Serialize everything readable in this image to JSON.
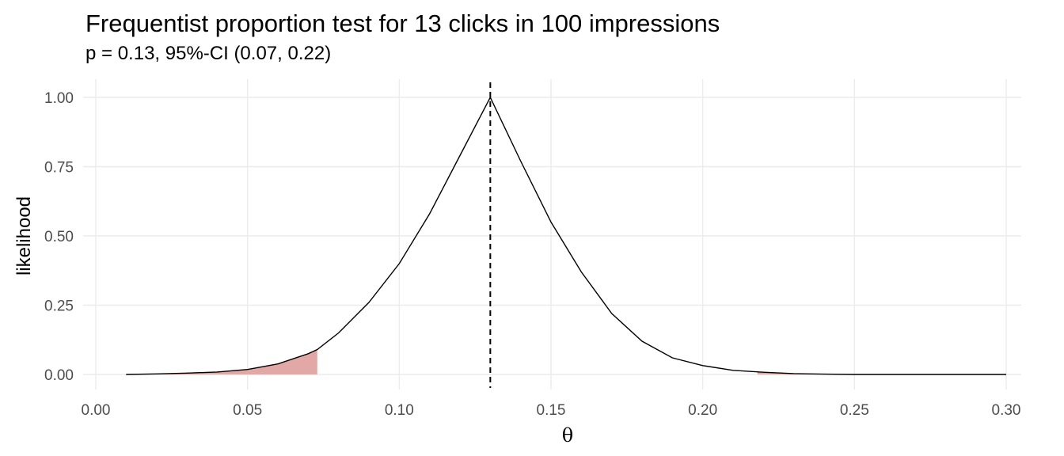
{
  "chart_data": {
    "type": "area",
    "title": "Frequentist proportion test for 13 clicks in 100 impressions",
    "subtitle": "p = 0.13, 95%-CI (0.07, 0.22)",
    "xlabel": "θ",
    "ylabel": "likelihood",
    "xlim": [
      0.0,
      0.3
    ],
    "ylim": [
      0.0,
      1.0
    ],
    "x_ticks": [
      "0.00",
      "0.05",
      "0.10",
      "0.15",
      "0.20",
      "0.25",
      "0.30"
    ],
    "y_ticks": [
      "0.00",
      "0.25",
      "0.50",
      "0.75",
      "1.00"
    ],
    "grid": true,
    "reference_line": {
      "x": 0.13,
      "style": "dashed",
      "color": "#000000"
    },
    "shaded_color": "#e2a8a6",
    "shaded_regions": [
      {
        "x_from": 0.01,
        "x_to": 0.073
      },
      {
        "x_from": 0.218,
        "x_to": 0.3
      }
    ],
    "series": [
      {
        "color": "#000000",
        "x": [
          0.01,
          0.02,
          0.03,
          0.04,
          0.05,
          0.06,
          0.07,
          0.073,
          0.08,
          0.09,
          0.1,
          0.11,
          0.12,
          0.13,
          0.14,
          0.15,
          0.16,
          0.17,
          0.18,
          0.19,
          0.2,
          0.21,
          0.22,
          0.23,
          0.24,
          0.25,
          0.26,
          0.27,
          0.28,
          0.29,
          0.3
        ],
        "y": [
          0.0,
          0.002,
          0.005,
          0.009,
          0.018,
          0.038,
          0.075,
          0.09,
          0.15,
          0.26,
          0.4,
          0.58,
          0.79,
          1.0,
          0.77,
          0.55,
          0.37,
          0.22,
          0.12,
          0.06,
          0.032,
          0.015,
          0.008,
          0.003,
          0.001,
          0.0,
          0.0,
          0.0,
          0.0,
          0.0,
          0.0
        ]
      }
    ]
  }
}
